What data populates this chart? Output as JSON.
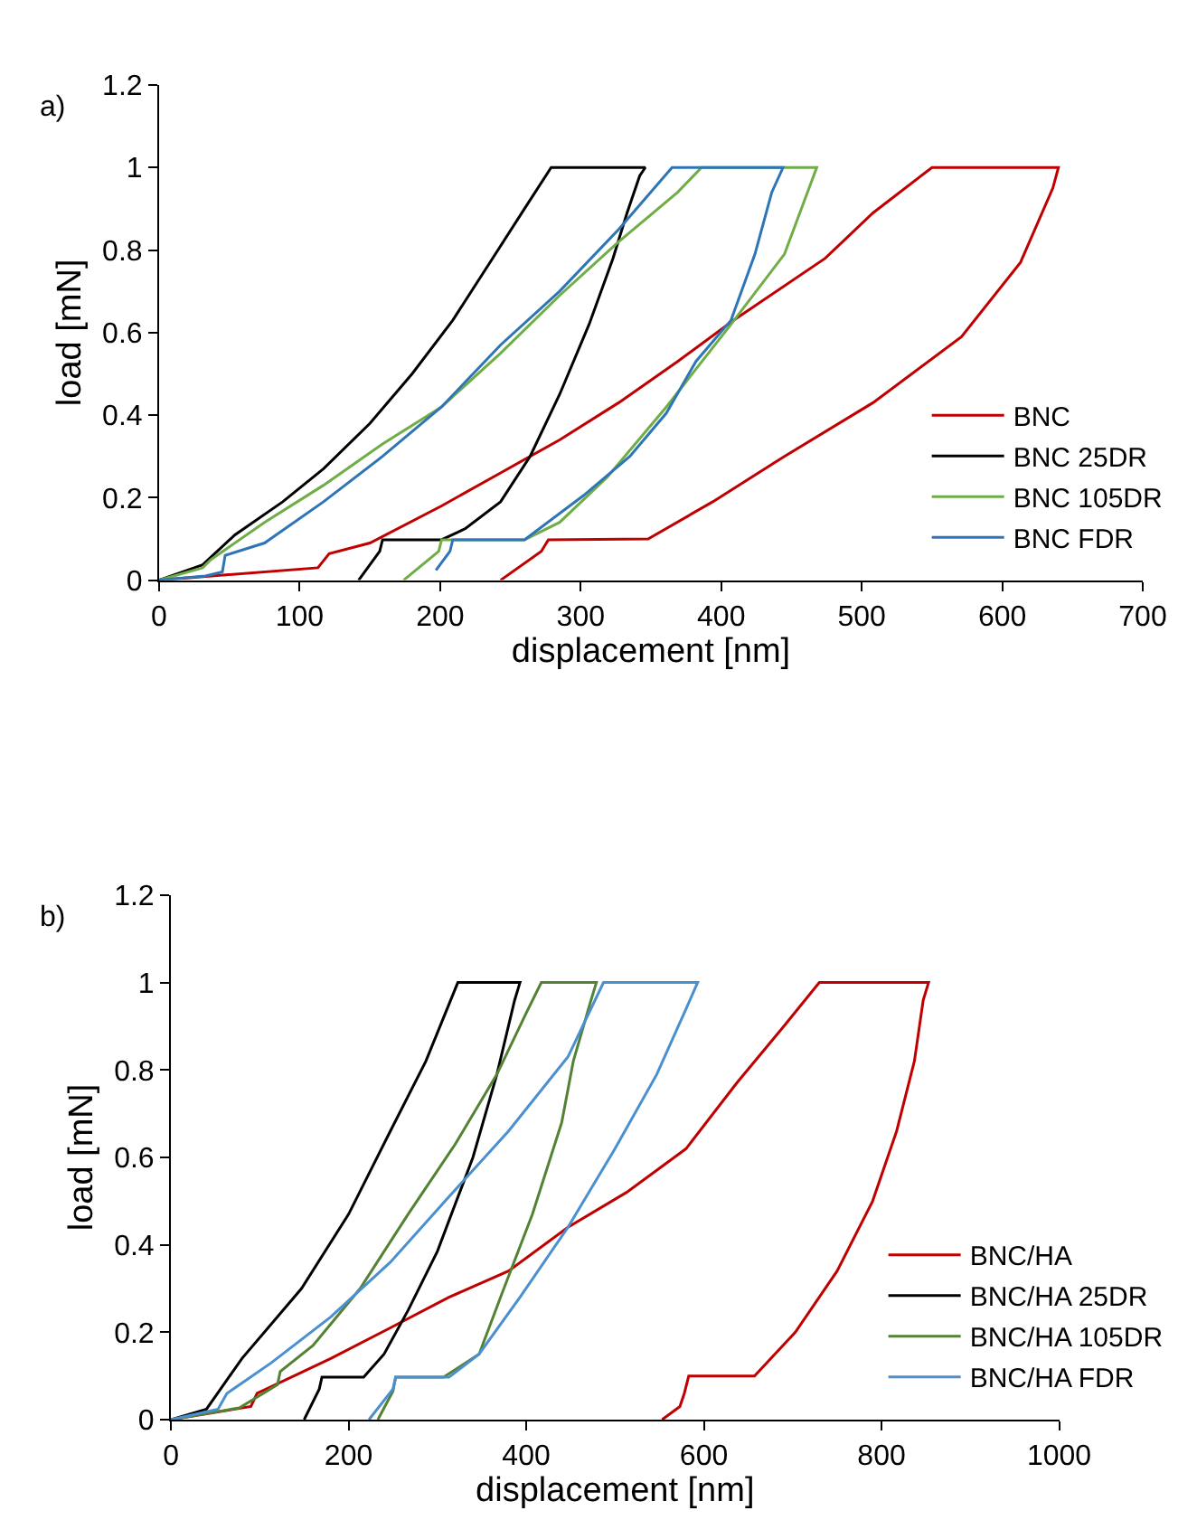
{
  "chart_data": [
    {
      "type": "line",
      "title": "a)",
      "xlabel": "displacement [nm]",
      "ylabel": "load [mN]",
      "xlim": [
        0,
        700
      ],
      "xticks": [
        0,
        100,
        200,
        300,
        400,
        500,
        600,
        700
      ],
      "ylim": [
        0,
        1.2
      ],
      "yticks": [
        0,
        0.2,
        0.4,
        0.6,
        0.8,
        1,
        1.2
      ],
      "legend": "bottom right",
      "series": [
        {
          "name": "BNC",
          "color": "#c00000",
          "x": [
            0,
            113,
            121,
            150,
            201,
            243,
            285,
            327,
            369,
            409,
            474,
            508,
            550,
            640,
            636,
            613,
            571,
            508,
            445,
            394,
            348,
            277,
            272,
            243
          ],
          "values": [
            0,
            0.03,
            0.064,
            0.09,
            0.18,
            0.26,
            0.34,
            0.43,
            0.53,
            0.63,
            0.78,
            0.89,
            1,
            1,
            0.95,
            0.77,
            0.59,
            0.43,
            0.3,
            0.19,
            0.1,
            0.098,
            0.07,
            0
          ]
        },
        {
          "name": "BNC 25DR",
          "color": "#000000",
          "x": [
            0,
            31,
            54,
            88,
            117,
            150,
            180,
            209,
            243,
            260,
            279,
            346,
            342,
            333,
            323,
            306,
            285,
            264,
            243,
            218,
            201,
            159,
            157,
            142
          ],
          "values": [
            0,
            0.037,
            0.11,
            0.19,
            0.27,
            0.38,
            0.5,
            0.63,
            0.81,
            0.9,
            1,
            1,
            0.98,
            0.89,
            0.78,
            0.62,
            0.45,
            0.3,
            0.19,
            0.125,
            0.098,
            0.098,
            0.07,
            0
          ]
        },
        {
          "name": "BNC 105DR",
          "color": "#70ad47",
          "x": [
            0,
            31,
            37,
            75,
            117,
            159,
            201,
            243,
            285,
            327,
            369,
            386,
            468,
            445,
            407,
            361,
            319,
            285,
            260,
            201,
            199,
            174
          ],
          "values": [
            0,
            0.03,
            0.05,
            0.14,
            0.23,
            0.33,
            0.42,
            0.55,
            0.69,
            0.82,
            0.94,
            1,
            1,
            0.79,
            0.62,
            0.42,
            0.25,
            0.14,
            0.098,
            0.098,
            0.07,
            0
          ]
        },
        {
          "name": "BNC FDR",
          "color": "#2e75b6",
          "x": [
            0,
            33,
            45,
            47,
            75,
            117,
            159,
            201,
            243,
            285,
            327,
            365,
            444,
            436,
            424,
            407,
            382,
            361,
            335,
            302,
            260,
            209,
            207,
            197
          ],
          "values": [
            0,
            0.01,
            0.02,
            0.06,
            0.09,
            0.19,
            0.3,
            0.42,
            0.57,
            0.7,
            0.85,
            1,
            1,
            0.94,
            0.79,
            0.63,
            0.53,
            0.405,
            0.3,
            0.205,
            0.098,
            0.098,
            0.07,
            0.024
          ]
        }
      ]
    },
    {
      "type": "line",
      "title": "b)",
      "xlabel": "displacement [nm]",
      "ylabel": "load [mN]",
      "xlim": [
        0,
        1000
      ],
      "xticks": [
        0,
        200,
        400,
        600,
        800,
        1000
      ],
      "ylim": [
        0,
        1.2
      ],
      "yticks": [
        0,
        0.2,
        0.4,
        0.6,
        0.8,
        1,
        1.2
      ],
      "legend": "bottom right",
      "series": [
        {
          "name": "BNC/HA",
          "color": "#c00000",
          "x": [
            0,
            90,
            97,
            180,
            247,
            313,
            380,
            447,
            513,
            580,
            637,
            690,
            730,
            853,
            847,
            837,
            817,
            790,
            750,
            703,
            657,
            583,
            578,
            573,
            553
          ],
          "values": [
            0,
            0.03,
            0.06,
            0.14,
            0.21,
            0.28,
            0.34,
            0.44,
            0.52,
            0.62,
            0.77,
            0.9,
            1,
            1,
            0.96,
            0.82,
            0.66,
            0.5,
            0.34,
            0.2,
            0.1,
            0.1,
            0.06,
            0.03,
            0
          ]
        },
        {
          "name": "BNC/HA 25DR",
          "color": "#000000",
          "x": [
            0,
            40,
            80,
            147,
            200,
            247,
            287,
            323,
            393,
            387,
            367,
            340,
            300,
            267,
            240,
            217,
            170,
            167,
            150
          ],
          "values": [
            0,
            0.024,
            0.14,
            0.3,
            0.47,
            0.66,
            0.82,
            1,
            1,
            0.96,
            0.79,
            0.6,
            0.385,
            0.25,
            0.15,
            0.097,
            0.097,
            0.07,
            0
          ]
        },
        {
          "name": "BNC/HA 105DR",
          "color": "#548235",
          "x": [
            0,
            77,
            120,
            123,
            160,
            213,
            267,
            320,
            367,
            400,
            417,
            479,
            473,
            453,
            440,
            407,
            373,
            347,
            307,
            253,
            250,
            233
          ],
          "values": [
            0,
            0.027,
            0.08,
            0.11,
            0.17,
            0.3,
            0.47,
            0.63,
            0.79,
            0.93,
            1,
            1,
            0.96,
            0.82,
            0.68,
            0.47,
            0.29,
            0.15,
            0.097,
            0.097,
            0.065,
            0
          ]
        },
        {
          "name": "BNC/HA FDR",
          "color": "#4a8fd0",
          "x": [
            0,
            53,
            63,
            113,
            180,
            247,
            313,
            380,
            447,
            487,
            593,
            580,
            547,
            500,
            447,
            393,
            347,
            313,
            253,
            250,
            223
          ],
          "values": [
            0,
            0.024,
            0.06,
            0.13,
            0.235,
            0.36,
            0.51,
            0.66,
            0.83,
            1,
            1,
            0.94,
            0.79,
            0.62,
            0.44,
            0.28,
            0.15,
            0.097,
            0.097,
            0.07,
            0
          ]
        }
      ]
    }
  ]
}
